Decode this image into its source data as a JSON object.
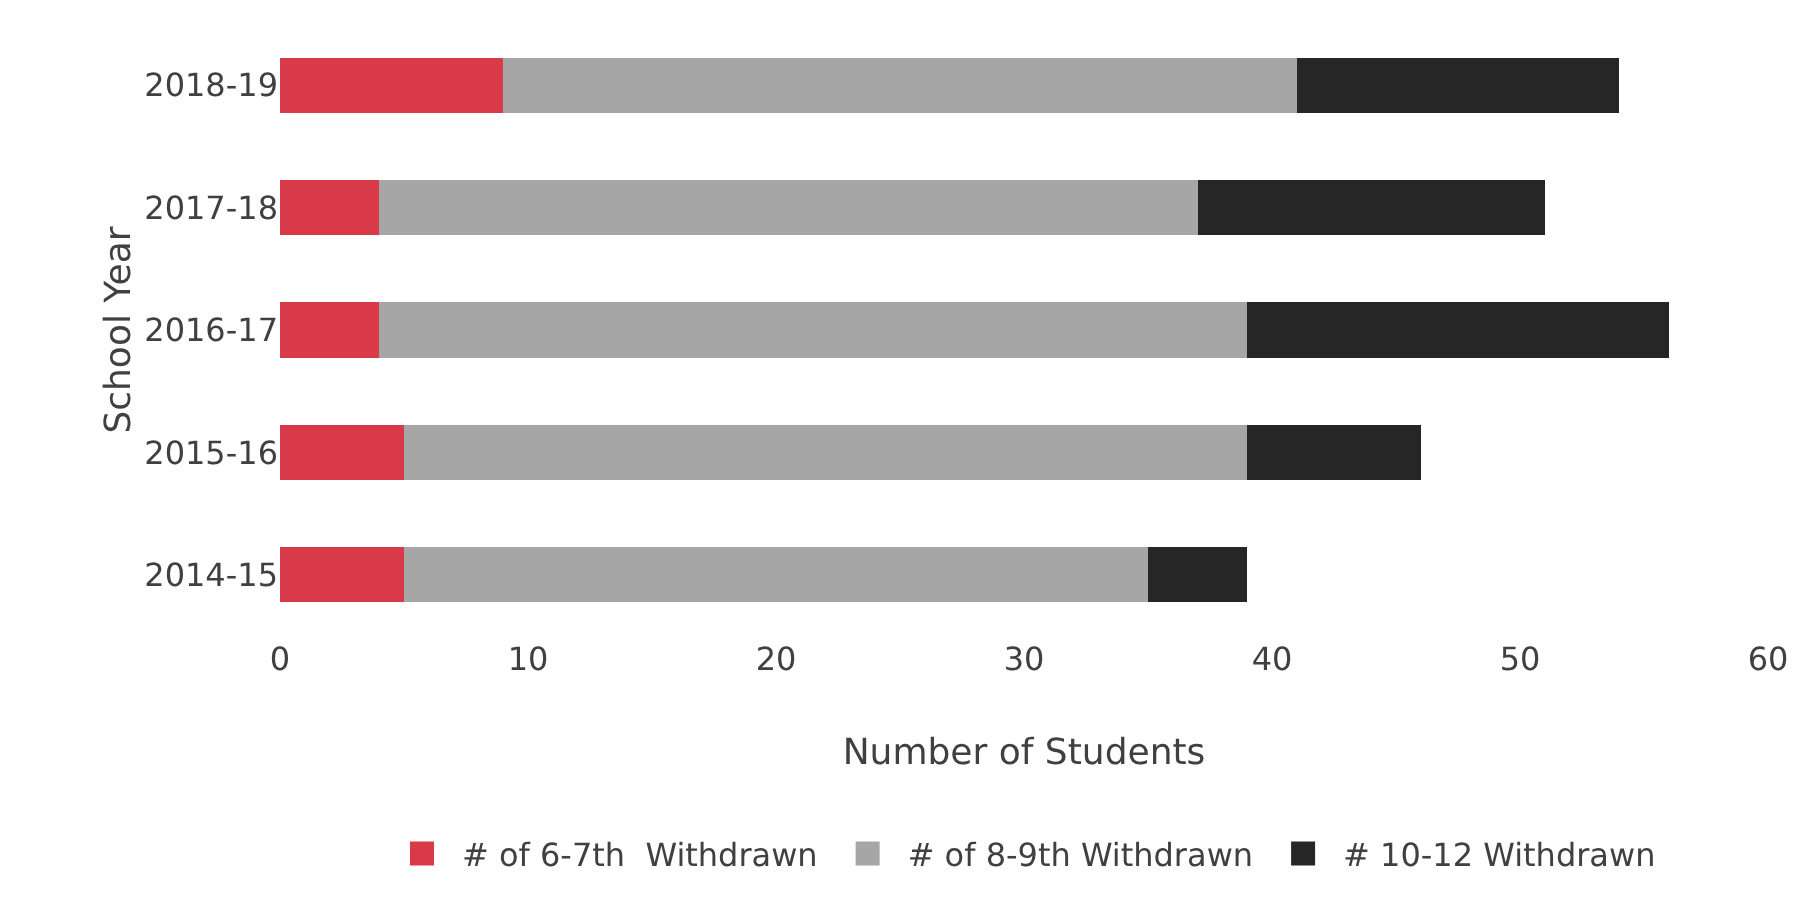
{
  "chart_data": {
    "type": "bar",
    "orientation": "horizontal",
    "stacked": true,
    "xlabel": "Number of Students",
    "ylabel": "School Year",
    "categories": [
      "2018-19",
      "2017-18",
      "2016-17",
      "2015-16",
      "2014-15"
    ],
    "series": [
      {
        "name": "# of 6-7th  Withdrawn",
        "color": "#d93a4a",
        "values": [
          9,
          4,
          4,
          5,
          5
        ]
      },
      {
        "name": "# of 8-9th Withdrawn",
        "color": "#a6a6a6",
        "values": [
          32,
          33,
          35,
          34,
          30
        ]
      },
      {
        "name": "# 10-12 Withdrawn",
        "color": "#262626",
        "values": [
          13,
          14,
          17,
          7,
          4
        ]
      }
    ],
    "xlim": [
      0,
      60
    ],
    "xticks": [
      0,
      10,
      20,
      30,
      40,
      50,
      60
    ],
    "grid": false,
    "legend": "bottom"
  }
}
